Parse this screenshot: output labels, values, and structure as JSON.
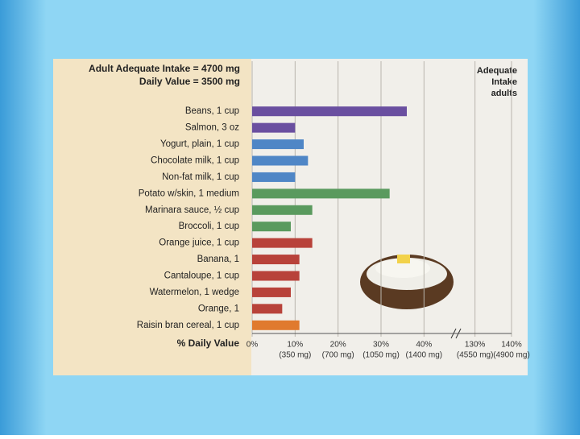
{
  "chart_data": {
    "type": "bar",
    "orientation": "horizontal",
    "title_lines": [
      "Adult Adequate Intake = 4700 mg",
      "Daily Value = 3500 mg"
    ],
    "reference_label": [
      "Adequate",
      "Intake",
      "adults"
    ],
    "xlabel": "% Daily Value",
    "categories": [
      "Beans, 1 cup",
      "Salmon, 3 oz",
      "Yogurt, plain, 1 cup",
      "Chocolate milk, 1 cup",
      "Non-fat milk, 1 cup",
      "Potato w/skin, 1 medium",
      "Marinara sauce, ½ cup",
      "Broccoli, 1 cup",
      "Orange juice, 1 cup",
      "Banana, 1",
      "Cantaloupe, 1 cup",
      "Watermelon, 1 wedge",
      "Orange, 1",
      "Raisin bran cereal, 1 cup"
    ],
    "values": [
      36,
      10,
      12,
      13,
      10,
      32,
      14,
      9,
      14,
      11,
      11,
      9,
      7,
      11
    ],
    "colors": [
      "#6a4fa0",
      "#6a4fa0",
      "#4f86c6",
      "#4f86c6",
      "#4f86c6",
      "#5a9a5e",
      "#5a9a5e",
      "#5a9a5e",
      "#b8423a",
      "#b8423a",
      "#b8423a",
      "#b8423a",
      "#b8423a",
      "#e07a2e"
    ],
    "xlim": [
      0,
      140
    ],
    "axis_break": [
      45,
      125
    ],
    "xticks": [
      {
        "value": 0,
        "label": "0%"
      },
      {
        "value": 10,
        "label": "10%",
        "mg": "(350 mg)"
      },
      {
        "value": 20,
        "label": "20%",
        "mg": "(700 mg)"
      },
      {
        "value": 30,
        "label": "30%",
        "mg": "(1050 mg)"
      },
      {
        "value": 40,
        "label": "40%",
        "mg": "(1400 mg)"
      },
      {
        "value": 130,
        "label": "130%",
        "mg": "(4550 mg)"
      },
      {
        "value": 140,
        "label": "140%",
        "mg": "(4900 mg)"
      }
    ],
    "grid": true
  }
}
